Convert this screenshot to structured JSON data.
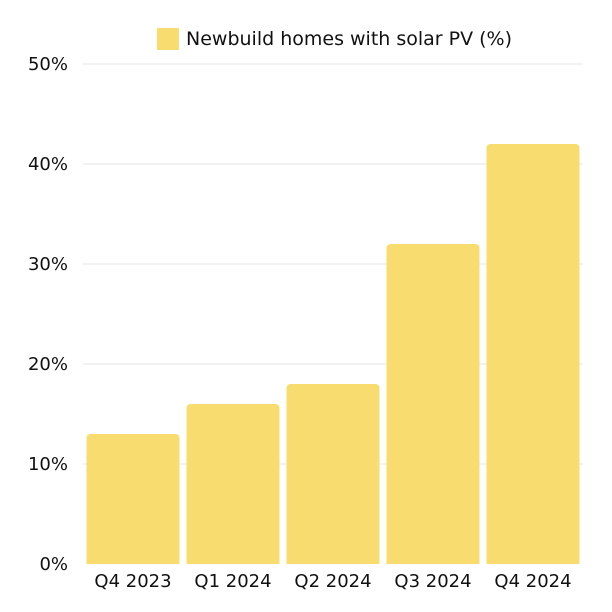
{
  "chart_data": {
    "type": "bar",
    "categories": [
      "Q4 2023",
      "Q1 2024",
      "Q2 2024",
      "Q3 2024",
      "Q4 2024"
    ],
    "series": [
      {
        "name": "Newbuild homes with solar PV (%)",
        "values": [
          13,
          16,
          18,
          32,
          42
        ]
      }
    ],
    "ylim": [
      0,
      50
    ],
    "yticks": [
      0,
      10,
      20,
      30,
      40,
      50
    ],
    "ytick_labels": [
      "0%",
      "10%",
      "20%",
      "30%",
      "40%",
      "50%"
    ],
    "grid": true,
    "legend_position": "top",
    "colors": {
      "bar": "#f9dc70",
      "grid": "#e4e4e4",
      "text": "#111111"
    }
  }
}
